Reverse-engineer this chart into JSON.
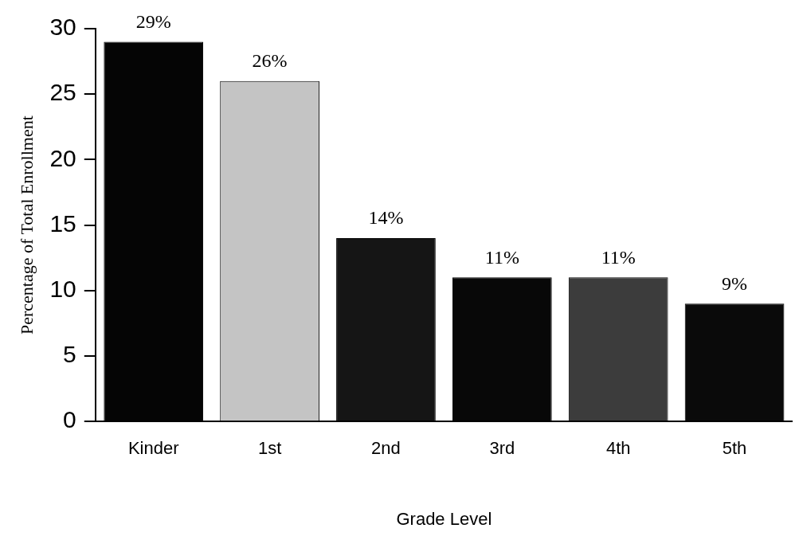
{
  "chart_data": {
    "type": "bar",
    "xlabel": "Grade Level",
    "ylabel": "Percentage of Total Enrollment",
    "categories": [
      "Kinder",
      "1st",
      "2nd",
      "3rd",
      "4th",
      "5th"
    ],
    "values": [
      29,
      26,
      14,
      11,
      11,
      9
    ],
    "colors": [
      "#050505",
      "#c4c4c4",
      "#151515",
      "#080808",
      "#3c3c3c",
      "#0a0a0a"
    ],
    "value_labels": [
      "29%",
      "26%",
      "14%",
      "11%",
      "11%",
      "9%"
    ],
    "ylim": [
      0,
      30
    ],
    "yticks": [
      0,
      5,
      10,
      15,
      20,
      25,
      30
    ],
    "grid": false,
    "legend": false
  }
}
